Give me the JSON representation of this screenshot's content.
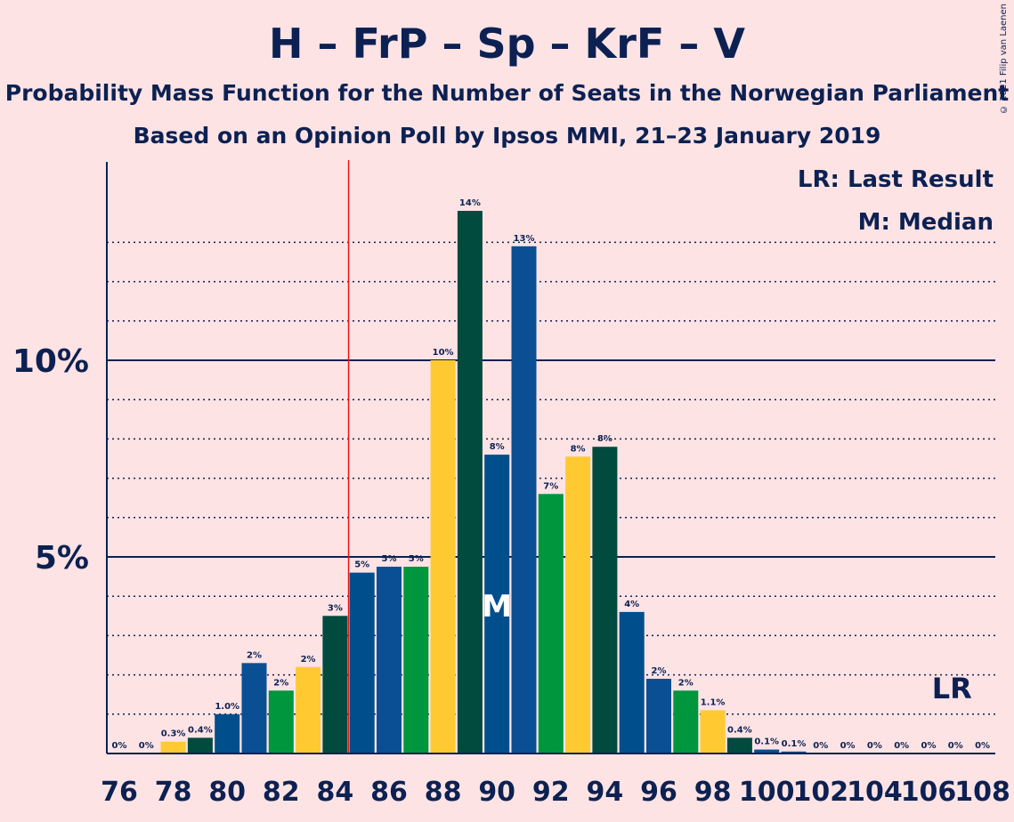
{
  "title": "H – FrP – Sp – KrF – V",
  "subtitle1": "Probability Mass Function for the Number of Seats in the Norwegian Parliament",
  "subtitle2": "Based on an Opinion Poll by Ipsos MMI, 21–23 January 2019",
  "copyright": "© 2021 Filip van Laenen",
  "legend": {
    "lr": "LR: Last Result",
    "m": "M: Median"
  },
  "markers": {
    "median_label": "M",
    "last_result_label": "LR",
    "median_seat": 90,
    "last_result_seat": 107,
    "majority_line_seat": 84.5
  },
  "colors": {
    "background": "#fde3e4",
    "text": "#0c2152",
    "majority_line": "#e8161a",
    "party_colors": [
      "#0a4f94",
      "#00963d",
      "#ffc932",
      "#004a3e",
      "#004f8c"
    ]
  },
  "chart_data": {
    "type": "bar",
    "xlabel": "",
    "ylabel": "",
    "ylim": [
      0,
      15
    ],
    "yticks": [
      {
        "value": 5,
        "label": "5%"
      },
      {
        "value": 10,
        "label": "10%"
      }
    ],
    "minor_gridlines": [
      1,
      2,
      3,
      4,
      6,
      7,
      8,
      9,
      11,
      12,
      13
    ],
    "x_tick_labels": [
      76,
      78,
      80,
      82,
      84,
      86,
      88,
      90,
      92,
      94,
      96,
      98,
      100,
      102,
      104,
      106,
      108
    ],
    "bars": [
      {
        "seats": 76,
        "value": 0.0,
        "label": "0%",
        "color": "#0a4f94"
      },
      {
        "seats": 77,
        "value": 0.0,
        "label": "0%",
        "color": "#00963d"
      },
      {
        "seats": 78,
        "value": 0.3,
        "label": "0.3%",
        "color": "#ffc932"
      },
      {
        "seats": 79,
        "value": 0.4,
        "label": "0.4%",
        "color": "#004a3e"
      },
      {
        "seats": 80,
        "value": 1.0,
        "label": "1.0%",
        "color": "#004f8c"
      },
      {
        "seats": 81,
        "value": 2.3,
        "label": "2%",
        "color": "#0a4f94"
      },
      {
        "seats": 82,
        "value": 1.6,
        "label": "2%",
        "color": "#00963d"
      },
      {
        "seats": 83,
        "value": 2.2,
        "label": "2%",
        "color": "#ffc932"
      },
      {
        "seats": 84,
        "value": 3.5,
        "label": "3%",
        "color": "#004a3e"
      },
      {
        "seats": 85,
        "value": 4.6,
        "label": "5%",
        "color": "#004f8c"
      },
      {
        "seats": 86,
        "value": 4.75,
        "label": "5%",
        "color": "#0a4f94"
      },
      {
        "seats": 87,
        "value": 4.75,
        "label": "5%",
        "color": "#00963d"
      },
      {
        "seats": 88,
        "value": 10.0,
        "label": "10%",
        "color": "#ffc932"
      },
      {
        "seats": 89,
        "value": 13.8,
        "label": "14%",
        "color": "#004a3e"
      },
      {
        "seats": 90,
        "value": 7.6,
        "label": "8%",
        "color": "#004f8c"
      },
      {
        "seats": 91,
        "value": 12.9,
        "label": "13%",
        "color": "#0a4f94"
      },
      {
        "seats": 92,
        "value": 6.6,
        "label": "7%",
        "color": "#00963d"
      },
      {
        "seats": 93,
        "value": 7.55,
        "label": "8%",
        "color": "#ffc932"
      },
      {
        "seats": 94,
        "value": 7.8,
        "label": "8%",
        "color": "#004a3e"
      },
      {
        "seats": 95,
        "value": 3.6,
        "label": "4%",
        "color": "#004f8c"
      },
      {
        "seats": 96,
        "value": 1.9,
        "label": "2%",
        "color": "#0a4f94"
      },
      {
        "seats": 97,
        "value": 1.6,
        "label": "2%",
        "color": "#00963d"
      },
      {
        "seats": 98,
        "value": 1.1,
        "label": "1.1%",
        "color": "#ffc932"
      },
      {
        "seats": 99,
        "value": 0.4,
        "label": "0.4%",
        "color": "#004a3e"
      },
      {
        "seats": 100,
        "value": 0.1,
        "label": "0.1%",
        "color": "#004f8c"
      },
      {
        "seats": 101,
        "value": 0.05,
        "label": "0.1%",
        "color": "#0a4f94"
      },
      {
        "seats": 102,
        "value": 0.0,
        "label": "0%",
        "color": "#00963d"
      },
      {
        "seats": 103,
        "value": 0.0,
        "label": "0%",
        "color": "#ffc932"
      },
      {
        "seats": 104,
        "value": 0.0,
        "label": "0%",
        "color": "#004a3e"
      },
      {
        "seats": 105,
        "value": 0.0,
        "label": "0%",
        "color": "#004f8c"
      },
      {
        "seats": 106,
        "value": 0.0,
        "label": "0%",
        "color": "#0a4f94"
      },
      {
        "seats": 107,
        "value": 0.0,
        "label": "0%",
        "color": "#00963d"
      },
      {
        "seats": 108,
        "value": 0.0,
        "label": "0%",
        "color": "#ffc932"
      }
    ]
  }
}
